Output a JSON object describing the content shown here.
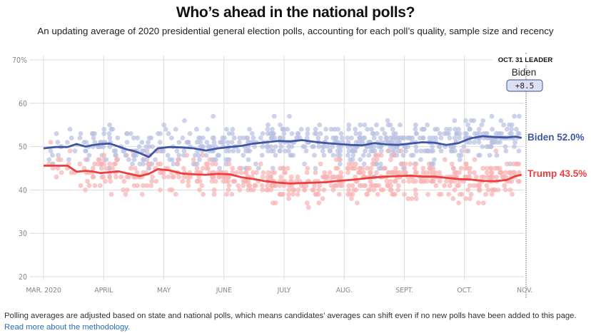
{
  "header": {
    "title": "Who’s ahead in the national polls?",
    "subtitle": "An updating average of 2020 presidential general election polls, accounting for each poll’s quality, sample size and recency"
  },
  "leader_box": {
    "label": "OCT. 31 LEADER",
    "name": "Biden",
    "margin": "+8.5"
  },
  "end_labels": {
    "biden": "Biden 52.0%",
    "trump": "Trump 43.5%"
  },
  "footer": {
    "text": "Polling averages are adjusted based on state and national polls, which means candidates’ averages can shift even if no new polls have been added to this page. ",
    "link_text": "Read more about the methodology."
  },
  "colors": {
    "biden": "#3e56a3",
    "trump": "#ef3c3c",
    "biden_dot": "#b9c1e2",
    "trump_dot": "#f8b3b3",
    "grid": "#dcdcdc",
    "link": "#2a6ebb"
  },
  "chart_data": {
    "type": "line",
    "title": "Who’s ahead in the national polls?",
    "xlabel": "",
    "ylabel": "",
    "ylim": [
      20,
      70
    ],
    "yticks": [
      20,
      30,
      40,
      50,
      60,
      70
    ],
    "ytick_labels": [
      "20",
      "30",
      "40",
      "50",
      "60",
      "70%"
    ],
    "x_month_index_range": [
      -0.05,
      8.0
    ],
    "xticks": [
      0,
      1,
      2,
      3,
      4,
      5,
      6,
      7,
      8
    ],
    "xtick_labels": [
      "MAR. 2020",
      "APRIL",
      "MAY",
      "JUNE",
      "JULY",
      "AUG.",
      "SEPT.",
      "OCT.",
      "NOV."
    ],
    "grid": true,
    "x_units": "months since Mar 1, 2020",
    "series": [
      {
        "name": "Biden",
        "x": [
          0.0,
          0.2,
          0.4,
          0.55,
          0.7,
          0.8,
          0.95,
          1.1,
          1.25,
          1.4,
          1.5,
          1.6,
          1.75,
          1.9,
          2.1,
          2.3,
          2.5,
          2.7,
          2.9,
          3.1,
          3.3,
          3.5,
          3.7,
          3.9,
          4.1,
          4.3,
          4.5,
          4.7,
          4.9,
          5.1,
          5.3,
          5.5,
          5.7,
          5.9,
          6.1,
          6.3,
          6.5,
          6.7,
          6.9,
          7.1,
          7.3,
          7.5,
          7.7,
          7.85,
          7.95
        ],
        "values": [
          49.6,
          49.9,
          49.9,
          50.6,
          50.0,
          50.3,
          50.6,
          50.7,
          50.0,
          49.3,
          49.0,
          48.5,
          47.6,
          49.6,
          49.9,
          49.8,
          49.6,
          49.1,
          49.6,
          49.9,
          50.2,
          50.7,
          51.0,
          51.3,
          51.2,
          51.5,
          51.1,
          50.8,
          50.6,
          50.4,
          50.3,
          50.8,
          50.5,
          50.4,
          50.7,
          51.0,
          50.9,
          50.4,
          50.8,
          51.9,
          52.4,
          52.2,
          52.1,
          52.3,
          52.0
        ]
      },
      {
        "name": "Trump",
        "x": [
          0.0,
          0.2,
          0.4,
          0.55,
          0.7,
          0.8,
          0.95,
          1.1,
          1.25,
          1.4,
          1.5,
          1.6,
          1.75,
          1.9,
          2.1,
          2.3,
          2.5,
          2.7,
          2.9,
          3.1,
          3.3,
          3.5,
          3.7,
          3.9,
          4.1,
          4.3,
          4.5,
          4.7,
          4.9,
          5.1,
          5.3,
          5.5,
          5.7,
          5.9,
          6.1,
          6.3,
          6.5,
          6.7,
          6.9,
          7.1,
          7.3,
          7.5,
          7.7,
          7.85,
          7.95
        ],
        "values": [
          45.6,
          45.6,
          45.6,
          44.2,
          44.4,
          44.3,
          43.9,
          44.1,
          44.3,
          43.8,
          43.5,
          43.2,
          43.7,
          44.8,
          44.5,
          43.8,
          43.6,
          43.5,
          43.7,
          43.6,
          42.9,
          42.5,
          42.0,
          41.7,
          41.5,
          41.6,
          41.7,
          41.8,
          42.1,
          42.3,
          42.6,
          42.9,
          43.1,
          43.2,
          43.3,
          43.1,
          43.1,
          42.8,
          42.5,
          42.4,
          42.1,
          42.0,
          42.3,
          43.2,
          43.5
        ]
      }
    ],
    "annotations": [
      "OCT. 31 LEADER",
      "Biden",
      "+8.5",
      "Biden 52.0%",
      "Trump 43.5%"
    ]
  }
}
